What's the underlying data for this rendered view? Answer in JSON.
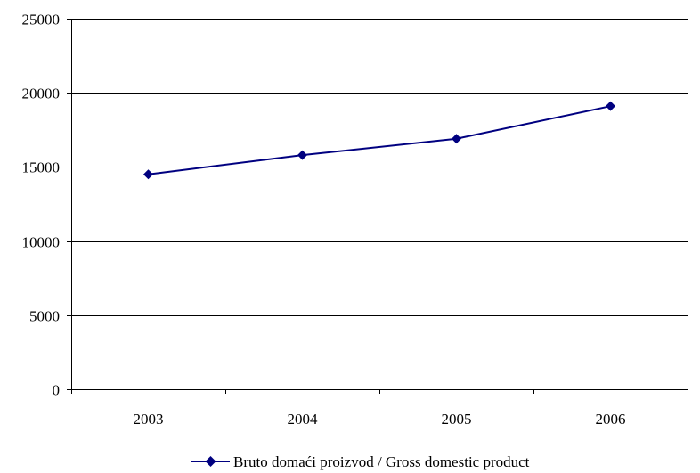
{
  "chart_data": {
    "type": "line",
    "title": "",
    "xlabel": "",
    "ylabel": "",
    "categories": [
      "2003",
      "2004",
      "2005",
      "2006"
    ],
    "series": [
      {
        "name": "Bruto domaći proizvod / Gross domestic product",
        "values": [
          14500,
          15800,
          16900,
          19100
        ],
        "color": "#000080",
        "marker": "diamond"
      }
    ],
    "ylim": [
      0,
      25000
    ],
    "yticks": [
      0,
      5000,
      10000,
      15000,
      20000,
      25000
    ],
    "ytick_labels": [
      "0",
      "5000",
      "10000",
      "15000",
      "20000",
      "25000"
    ],
    "grid": "horizontal",
    "legend_position": "bottom"
  }
}
